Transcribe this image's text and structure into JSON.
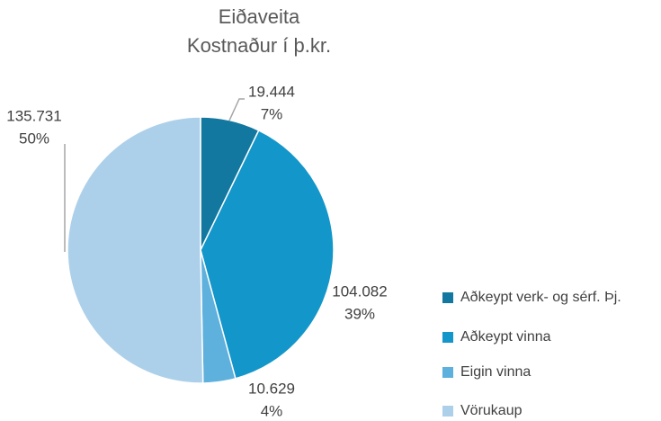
{
  "chart_data": {
    "type": "pie",
    "title": [
      "Eiðaveita",
      "Kostnaður í þ.kr."
    ],
    "categories": [
      "Aðkeypt verk- og sérf. Þj.",
      "Aðkeypt vinna",
      "Eigin vinna",
      "Vörukaup"
    ],
    "values": [
      19444,
      104082,
      10629,
      135731
    ],
    "value_labels": [
      "19.444",
      "104.082",
      "10.629",
      "135.731"
    ],
    "percent_labels": [
      "7%",
      "39%",
      "4%",
      "50%"
    ],
    "colors": [
      "#12789f",
      "#1396c9",
      "#5eb0dd",
      "#add0ea"
    ],
    "legend": "right"
  }
}
